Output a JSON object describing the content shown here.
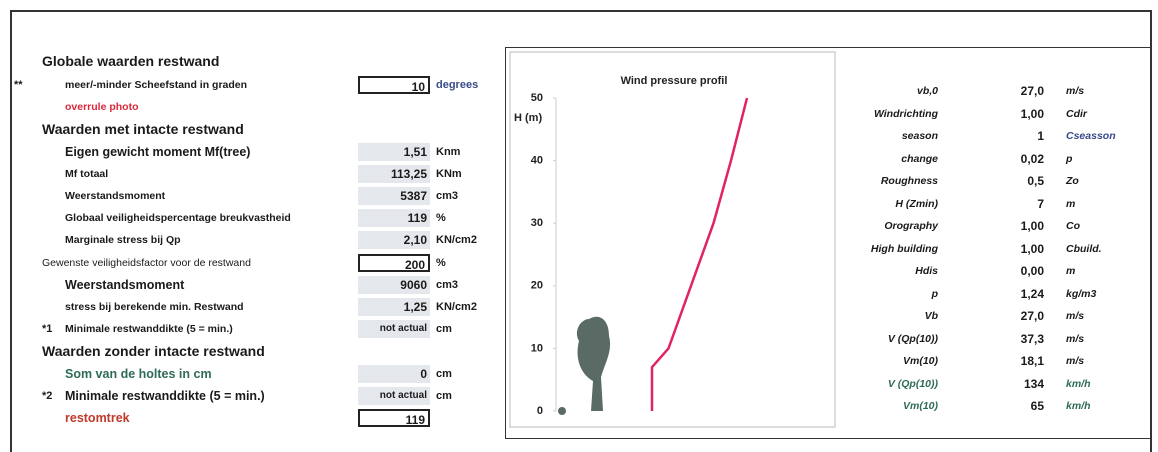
{
  "left": {
    "title": "Globale waarden  restwand",
    "rows": [
      {
        "marker": "**",
        "label": "meer/-minder Scheefstand in graden",
        "value": "10",
        "unit": "degrees",
        "boxed": true,
        "unit_color": "#3a4a8a"
      },
      {
        "label": "overrule photo",
        "color": "#d9283a"
      },
      {
        "label": "Waarden met intacte restwand",
        "heading": true
      },
      {
        "label": "Eigen gewicht moment Mf(tree)",
        "value": "1,51",
        "unit": "Knm",
        "size": "m"
      },
      {
        "label": "Mf totaal",
        "value": "113,25",
        "unit": "KNm"
      },
      {
        "label": "Weerstandsmoment",
        "value": "5387",
        "unit": "cm3"
      },
      {
        "label": "Globaal veiligheidspercentage breukvastheid",
        "value": "119",
        "unit": "%"
      },
      {
        "label": "Marginale stress bij Qp",
        "value": "2,10",
        "unit": "KN/cm2"
      },
      {
        "label": "Gewenste veiligheidsfactor voor de restwand",
        "value": "200",
        "unit": "%",
        "boxed": true,
        "outdent": true
      },
      {
        "label": "Weerstandsmoment",
        "value": "9060",
        "unit": "cm3",
        "size": "m"
      },
      {
        "label": "stress bij berekende min. Restwand",
        "value": "1,25",
        "unit": "KN/cm2"
      },
      {
        "marker": "*1",
        "label": "Minimale restwanddikte (5 = min.)",
        "value": "not actual",
        "unit": "cm"
      },
      {
        "label": "Waarden  zonder intacte restwand",
        "heading": true
      },
      {
        "label": "Som van de holtes in cm",
        "value": "0",
        "unit": "cm",
        "size": "m",
        "color": "#2f6b5a"
      },
      {
        "marker": "*2",
        "label": "Minimale restwanddikte (5 = min.)",
        "value": "not actual",
        "unit": "cm",
        "size": "m"
      },
      {
        "label": "restomtrek",
        "value": "119",
        "boxed": true,
        "size": "m",
        "color": "#c0392b"
      }
    ]
  },
  "chart": {
    "type": "line",
    "title": "Wind pressure profil",
    "ylabel": "H (m)",
    "ylim": [
      0,
      50
    ],
    "yticks": [
      0,
      10,
      20,
      30,
      40,
      50
    ],
    "xlim": [
      0,
      1
    ],
    "series": [
      {
        "color": "#e0245e",
        "x": [
          0.384,
          0.384,
          0.45,
          0.54,
          0.63,
          0.7,
          0.764
        ],
        "y": [
          0,
          7,
          10,
          20,
          30,
          40,
          50
        ]
      }
    ]
  },
  "right": {
    "rows": [
      {
        "label": "vb,0",
        "value": "27,0",
        "unit": "m/s"
      },
      {
        "label": "Windrichting",
        "value": "1,00",
        "unit": "Cdir"
      },
      {
        "label": "season",
        "value": "1",
        "unit": "Cseasson",
        "unit_color": "#3a4a8a"
      },
      {
        "label": "change",
        "value": "0,02",
        "unit": "p"
      },
      {
        "label": "Roughness",
        "value": "0,5",
        "unit": "Zo"
      },
      {
        "label": "H (Zmin)",
        "value": "7",
        "unit": "m"
      },
      {
        "label": "Orography",
        "value": "1,00",
        "unit": "Co"
      },
      {
        "label": "High building",
        "value": "1,00",
        "unit": "Cbuild."
      },
      {
        "label": "Hdis",
        "value": "0,00",
        "unit": "m"
      },
      {
        "label": "p",
        "value": "1,24",
        "unit": "kg/m3"
      },
      {
        "label": "Vb",
        "value": "27,0",
        "unit": "m/s"
      },
      {
        "label": "V (Qp(10))",
        "value": "37,3",
        "unit": "m/s"
      },
      {
        "label": "Vm(10)",
        "value": "18,1",
        "unit": "m/s"
      },
      {
        "label": "V (Qp(10))",
        "value": "134",
        "unit": "km/h",
        "color": "#2f6b5a"
      },
      {
        "label": "Vm(10)",
        "value": "65",
        "unit": "km/h",
        "color": "#2f6b5a"
      }
    ]
  }
}
